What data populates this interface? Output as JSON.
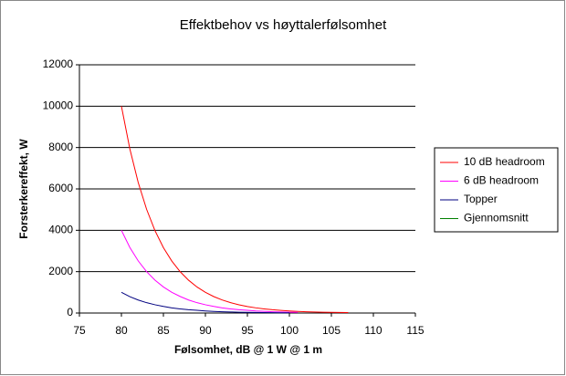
{
  "chart_data": {
    "type": "line",
    "title": "Effektbehov vs høyttalerfølsomhet",
    "x_label": "Følsomhet, dB @ 1 W @ 1 m",
    "y_label": "Forsterkereffekt, W",
    "x": [
      80,
      81,
      82,
      83,
      84,
      85,
      86,
      87,
      88,
      89,
      90,
      91,
      92,
      93,
      94,
      95,
      96,
      97,
      98,
      99,
      100,
      101,
      102,
      103,
      104,
      105,
      106,
      107
    ],
    "series": [
      {
        "name": "10 dB headroom",
        "color": "#ff0000",
        "values": [
          10000,
          7943,
          6310,
          5012,
          3981,
          3162,
          2512,
          1995,
          1585,
          1259,
          1000,
          794,
          631,
          501,
          398,
          316,
          251,
          200,
          158,
          126,
          100,
          79,
          63,
          50,
          40,
          32,
          25,
          20
        ]
      },
      {
        "name": "6 dB headroom",
        "color": "#ff00ff",
        "values": [
          4000,
          3170,
          2520,
          2000,
          1590,
          1260,
          1000,
          800,
          630,
          500,
          400,
          320,
          250,
          200,
          160,
          130,
          100,
          80,
          63,
          50,
          40,
          32,
          null,
          null,
          null,
          null,
          null,
          null
        ]
      },
      {
        "name": "Topper",
        "color": "#000080",
        "values": [
          1000,
          790,
          630,
          500,
          400,
          320,
          250,
          200,
          160,
          130,
          100,
          79,
          63,
          50,
          40,
          32,
          25,
          20,
          16,
          13,
          10,
          null,
          null,
          null,
          null,
          null,
          null,
          null
        ]
      },
      {
        "name": "Gjennomsnitt",
        "color": "#008000",
        "values": [
          null,
          null,
          null,
          null,
          null,
          null,
          null,
          null,
          null,
          null,
          null,
          null,
          null,
          null,
          null,
          null,
          null,
          null,
          null,
          null,
          null,
          null,
          null,
          null,
          null,
          null,
          null,
          null
        ]
      }
    ],
    "xlim": [
      75,
      115
    ],
    "xticks": [
      75,
      80,
      85,
      90,
      95,
      100,
      105,
      110,
      115
    ],
    "ylim": [
      0,
      12000
    ],
    "yticks": [
      0,
      2000,
      4000,
      6000,
      8000,
      10000,
      12000
    ],
    "grid": true,
    "legend": "right"
  }
}
